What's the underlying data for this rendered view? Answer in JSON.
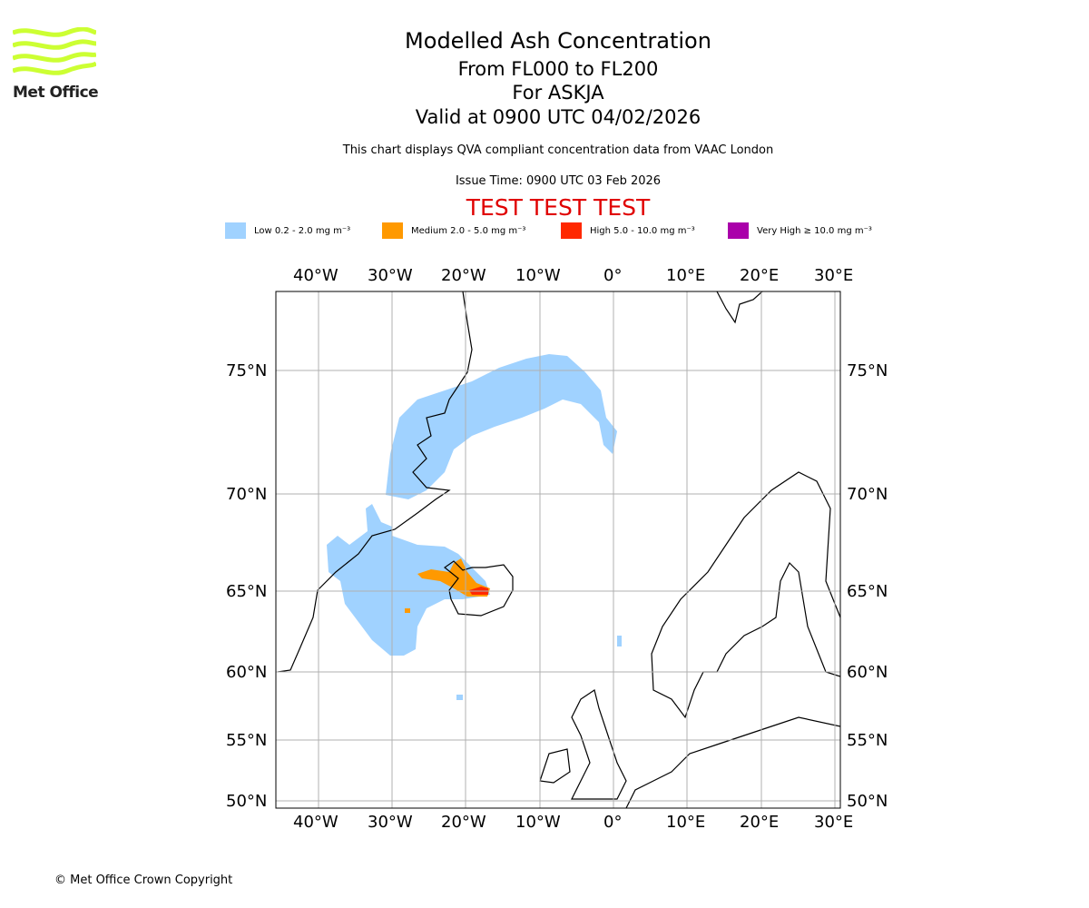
{
  "logo": {
    "text": "Met Office"
  },
  "header": {
    "title": "Modelled Ash Concentration",
    "levels": "From FL000 to FL200",
    "volcano": "For ASKJA",
    "valid": "Valid at 0900 UTC 04/02/2026",
    "description": "This chart displays QVA compliant concentration data from VAAC London",
    "issue_time": "Issue Time: 0900 UTC 03 Feb 2026",
    "test_banner": "TEST TEST TEST"
  },
  "legend": [
    {
      "label": "Low 0.2 - 2.0 mg m⁻³",
      "color": "#a0d2ff"
    },
    {
      "label": "Medium 2.0 - 5.0 mg m⁻³",
      "color": "#ff9900"
    },
    {
      "label": "High 5.0 - 10.0 mg m⁻³",
      "color": "#ff2800"
    },
    {
      "label": "Very High ≥ 10.0 mg m⁻³",
      "color": "#aa00aa"
    }
  ],
  "map": {
    "lon_labels": [
      "40°W",
      "30°W",
      "20°W",
      "10°W",
      "0°",
      "10°E",
      "20°E",
      "30°E"
    ],
    "lat_labels": [
      "75°N",
      "70°N",
      "65°N",
      "60°N",
      "55°N",
      "50°N"
    ]
  },
  "footer": {
    "copyright": "© Met Office Crown Copyright"
  }
}
